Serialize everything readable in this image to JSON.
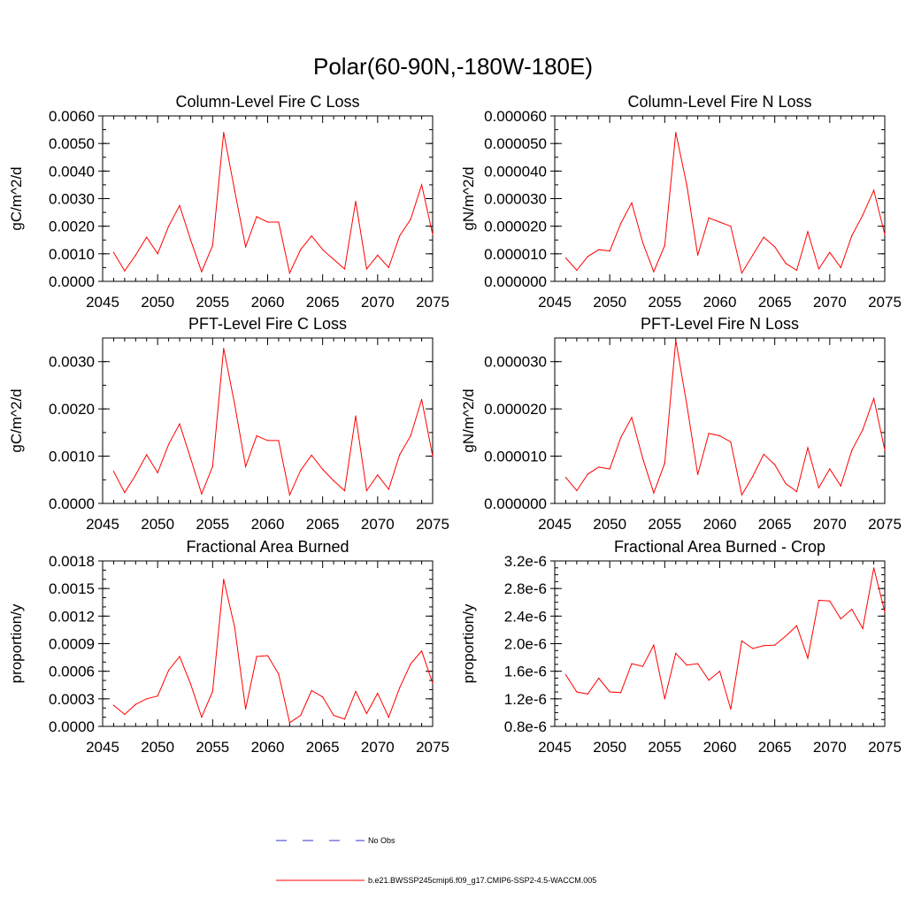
{
  "figure_title": "Polar(60-90N,-180W-180E)",
  "colors": {
    "series": "#ff0000",
    "no_obs": "#3333cc",
    "axis": "#000000"
  },
  "legend": {
    "no_obs_label": "No Obs",
    "run_label": "b.e21.BWSSP245cmip6.f09_g17.CMIP6-SSP2-4.5-WACCM.005"
  },
  "chart_data": [
    {
      "type": "line",
      "title": "Column-Level Fire C Loss",
      "ylabel": "gC/m^2/d",
      "xlim": [
        2045,
        2075
      ],
      "ylim": [
        0,
        0.006
      ],
      "xticks": [
        2045,
        2050,
        2055,
        2060,
        2065,
        2070,
        2075
      ],
      "yticks": [
        0,
        0.001,
        0.002,
        0.003,
        0.004,
        0.005,
        0.006
      ],
      "ytick_labels": [
        "0.0000",
        "0.0010",
        "0.0020",
        "0.0030",
        "0.0040",
        "0.0050",
        "0.0060"
      ],
      "yminor": 0.0005,
      "x": [
        2046,
        2047,
        2048,
        2049,
        2050,
        2051,
        2052,
        2053,
        2054,
        2055,
        2056,
        2057,
        2058,
        2059,
        2060,
        2061,
        2062,
        2063,
        2064,
        2065,
        2066,
        2067,
        2068,
        2069,
        2070,
        2071,
        2072,
        2073,
        2074,
        2075
      ],
      "values": [
        0.00105,
        0.00038,
        0.00095,
        0.0016,
        0.001,
        0.002,
        0.00275,
        0.0015,
        0.00035,
        0.0013,
        0.0054,
        0.0033,
        0.00125,
        0.00235,
        0.00215,
        0.00215,
        0.0003,
        0.00115,
        0.00165,
        0.00115,
        0.0008,
        0.00045,
        0.0029,
        0.00045,
        0.00095,
        0.0005,
        0.00165,
        0.00225,
        0.0035,
        0.0017
      ]
    },
    {
      "type": "line",
      "title": "Column-Level Fire N Loss",
      "ylabel": "gN/m^2/d",
      "xlim": [
        2045,
        2075
      ],
      "ylim": [
        0,
        6e-05
      ],
      "xticks": [
        2045,
        2050,
        2055,
        2060,
        2065,
        2070,
        2075
      ],
      "yticks": [
        0,
        1e-05,
        2e-05,
        3e-05,
        4e-05,
        5e-05,
        6e-05
      ],
      "ytick_labels": [
        "0.000000",
        "0.000010",
        "0.000020",
        "0.000030",
        "0.000040",
        "0.000050",
        "0.000060"
      ],
      "yminor": 5e-06,
      "x": [
        2046,
        2047,
        2048,
        2049,
        2050,
        2051,
        2052,
        2053,
        2054,
        2055,
        2056,
        2057,
        2058,
        2059,
        2060,
        2061,
        2062,
        2063,
        2064,
        2065,
        2066,
        2067,
        2068,
        2069,
        2070,
        2071,
        2072,
        2073,
        2074,
        2075
      ],
      "values": [
        8.5e-06,
        4e-06,
        9e-06,
        1.15e-05,
        1.1e-05,
        2.1e-05,
        2.85e-05,
        1.4e-05,
        3.5e-06,
        1.3e-05,
        5.4e-05,
        3.5e-05,
        9.5e-06,
        2.3e-05,
        2.15e-05,
        2e-05,
        3e-06,
        9.5e-06,
        1.6e-05,
        1.25e-05,
        6.5e-06,
        4e-06,
        1.8e-05,
        4.5e-06,
        1.05e-05,
        5e-06,
        1.65e-05,
        2.4e-05,
        3.3e-05,
        1.7e-05
      ]
    },
    {
      "type": "line",
      "title": "PFT-Level Fire C Loss",
      "ylabel": "gC/m^2/d",
      "xlim": [
        2045,
        2075
      ],
      "ylim": [
        0,
        0.0035
      ],
      "xticks": [
        2045,
        2050,
        2055,
        2060,
        2065,
        2070,
        2075
      ],
      "yticks": [
        0,
        0.001,
        0.002,
        0.003
      ],
      "ytick_labels": [
        "0.0000",
        "0.0010",
        "0.0020",
        "0.0030"
      ],
      "yminor": 0.0005,
      "x": [
        2046,
        2047,
        2048,
        2049,
        2050,
        2051,
        2052,
        2053,
        2054,
        2055,
        2056,
        2057,
        2058,
        2059,
        2060,
        2061,
        2062,
        2063,
        2064,
        2065,
        2066,
        2067,
        2068,
        2069,
        2070,
        2071,
        2072,
        2073,
        2074,
        2075
      ],
      "values": [
        0.00068,
        0.00023,
        0.0006,
        0.00103,
        0.00065,
        0.00125,
        0.00168,
        0.00095,
        0.0002,
        0.00078,
        0.00328,
        0.0021,
        0.00078,
        0.00143,
        0.00133,
        0.00133,
        0.00018,
        0.0007,
        0.00102,
        0.00072,
        0.00048,
        0.00027,
        0.00185,
        0.00027,
        0.0006,
        0.0003,
        0.00103,
        0.00143,
        0.0022,
        0.001
      ]
    },
    {
      "type": "line",
      "title": "PFT-Level Fire N Loss",
      "ylabel": "gN/m^2/d",
      "xlim": [
        2045,
        2075
      ],
      "ylim": [
        0,
        3.5e-05
      ],
      "xticks": [
        2045,
        2050,
        2055,
        2060,
        2065,
        2070,
        2075
      ],
      "yticks": [
        0,
        1e-05,
        2e-05,
        3e-05
      ],
      "ytick_labels": [
        "0.000000",
        "0.000010",
        "0.000020",
        "0.000030"
      ],
      "yminor": 5e-06,
      "x": [
        2046,
        2047,
        2048,
        2049,
        2050,
        2051,
        2052,
        2053,
        2054,
        2055,
        2056,
        2057,
        2058,
        2059,
        2060,
        2061,
        2062,
        2063,
        2064,
        2065,
        2066,
        2067,
        2068,
        2069,
        2070,
        2071,
        2072,
        2073,
        2074,
        2075
      ],
      "values": [
        5.5e-06,
        2.7e-06,
        6.2e-06,
        7.7e-06,
        7.3e-06,
        1.39e-05,
        1.82e-05,
        9.5e-06,
        2.2e-06,
        8.5e-06,
        3.45e-05,
        2.1e-05,
        6.1e-06,
        1.48e-05,
        1.43e-05,
        1.3e-05,
        1.8e-06,
        5.7e-06,
        1.04e-05,
        8.2e-06,
        4.2e-06,
        2.5e-06,
        1.18e-05,
        3.3e-06,
        7.3e-06,
        3.7e-06,
        1.12e-05,
        1.56e-05,
        2.22e-05,
        1.13e-05
      ]
    },
    {
      "type": "line",
      "title": "Fractional Area Burned",
      "ylabel": "proportion/y",
      "xlim": [
        2045,
        2075
      ],
      "ylim": [
        0,
        0.0018
      ],
      "xticks": [
        2045,
        2050,
        2055,
        2060,
        2065,
        2070,
        2075
      ],
      "yticks": [
        0,
        0.0003,
        0.0006,
        0.0009,
        0.0012,
        0.0015,
        0.0018
      ],
      "ytick_labels": [
        "0.0000",
        "0.0003",
        "0.0006",
        "0.0009",
        "0.0012",
        "0.0015",
        "0.0018"
      ],
      "yminor": 0.0001,
      "x": [
        2046,
        2047,
        2048,
        2049,
        2050,
        2051,
        2052,
        2053,
        2054,
        2055,
        2056,
        2057,
        2058,
        2059,
        2060,
        2061,
        2062,
        2063,
        2064,
        2065,
        2066,
        2067,
        2068,
        2069,
        2070,
        2071,
        2072,
        2073,
        2074,
        2075
      ],
      "values": [
        0.00023,
        0.00013,
        0.00024,
        0.0003,
        0.00033,
        0.00061,
        0.00076,
        0.00046,
        0.0001,
        0.00038,
        0.0016,
        0.00108,
        0.00019,
        0.00076,
        0.00077,
        0.00057,
        4e-05,
        0.00012,
        0.00039,
        0.00032,
        0.00012,
        8e-05,
        0.00038,
        0.00014,
        0.00036,
        0.0001,
        0.00042,
        0.00068,
        0.00082,
        0.00047
      ]
    },
    {
      "type": "line",
      "title": "Fractional Area Burned - Crop",
      "ylabel": "proportion/y",
      "xlim": [
        2045,
        2075
      ],
      "ylim": [
        8e-07,
        3.2e-06
      ],
      "xticks": [
        2045,
        2050,
        2055,
        2060,
        2065,
        2070,
        2075
      ],
      "yticks": [
        8e-07,
        1.2e-06,
        1.6e-06,
        2e-06,
        2.4e-06,
        2.8e-06,
        3.2e-06
      ],
      "ytick_labels": [
        "0.8e-6",
        "1.2e-6",
        "1.6e-6",
        "2.0e-6",
        "2.4e-6",
        "2.8e-6",
        "3.2e-6"
      ],
      "yminor": 1e-07,
      "x": [
        2046,
        2047,
        2048,
        2049,
        2050,
        2051,
        2052,
        2053,
        2054,
        2055,
        2056,
        2057,
        2058,
        2059,
        2060,
        2061,
        2062,
        2063,
        2064,
        2065,
        2066,
        2067,
        2068,
        2069,
        2070,
        2071,
        2072,
        2073,
        2074,
        2075
      ],
      "values": [
        1.55e-06,
        1.3e-06,
        1.27e-06,
        1.5e-06,
        1.3e-06,
        1.29e-06,
        1.71e-06,
        1.67e-06,
        1.98e-06,
        1.2e-06,
        1.86e-06,
        1.69e-06,
        1.71e-06,
        1.47e-06,
        1.6e-06,
        1.05e-06,
        2.04e-06,
        1.93e-06,
        1.97e-06,
        1.98e-06,
        2.11e-06,
        2.26e-06,
        1.79e-06,
        2.63e-06,
        2.62e-06,
        2.36e-06,
        2.5e-06,
        2.22e-06,
        3.1e-06,
        2.46e-06
      ]
    }
  ]
}
